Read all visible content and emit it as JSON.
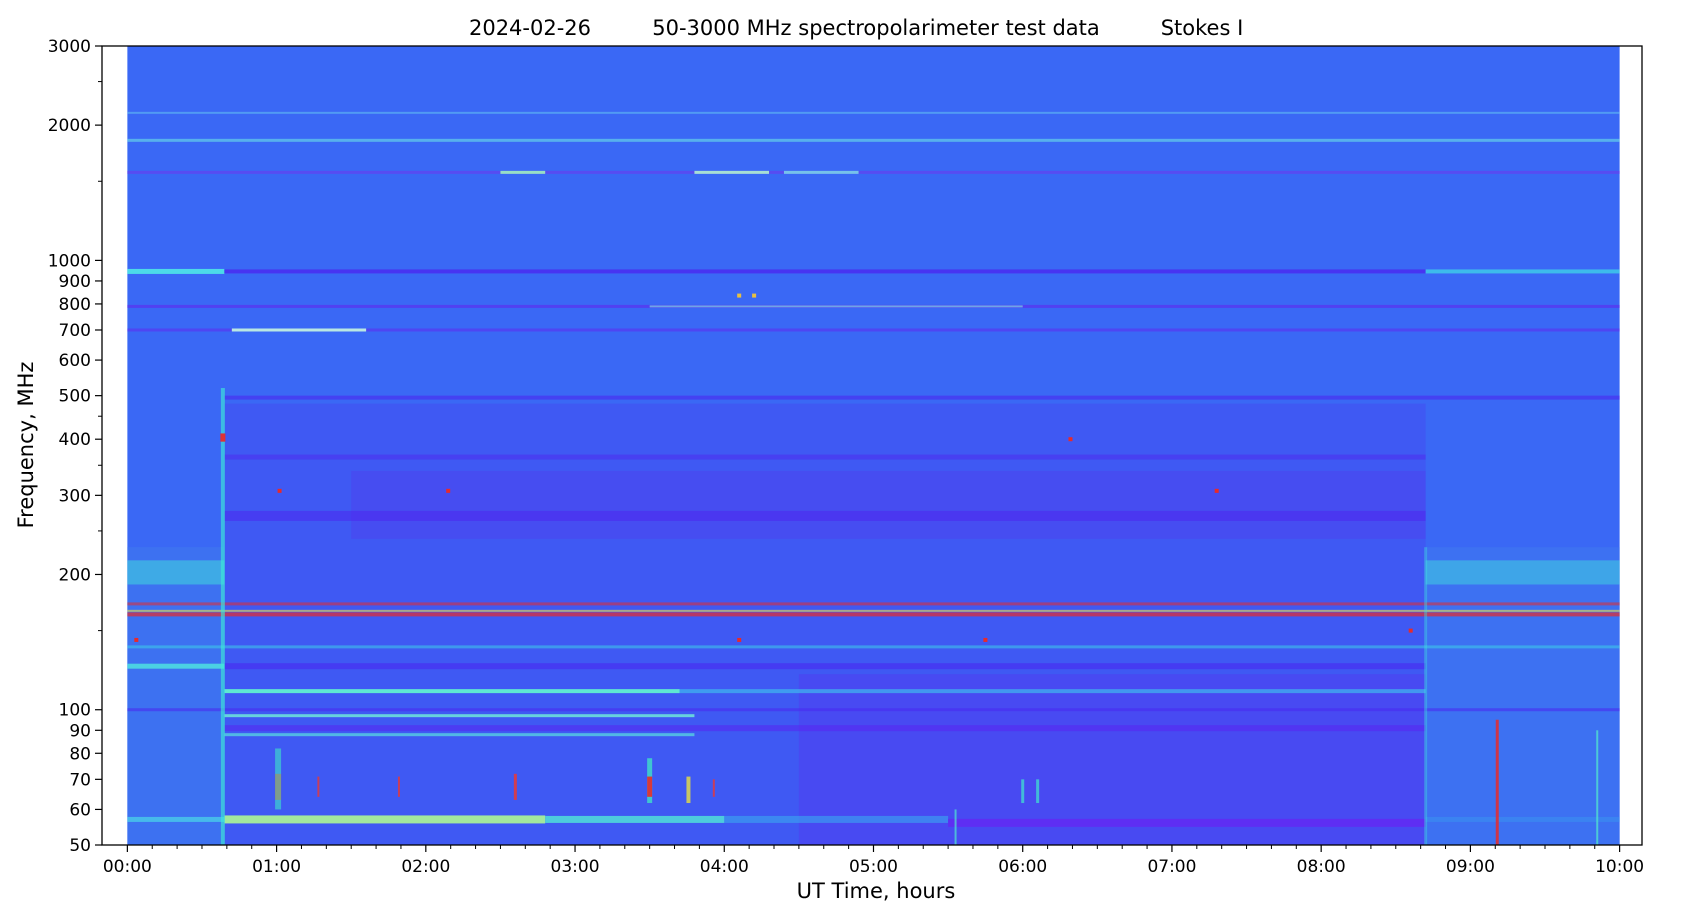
{
  "figure": {
    "title_date": "2024-02-26",
    "title_main": "50-3000 MHz spectropolarimeter test data",
    "title_stokes": "Stokes I"
  },
  "chart_data": {
    "type": "heatmap",
    "title": "2024-02-26          50-3000 MHz spectropolarimeter test data          Stokes I",
    "xlabel": "UT Time, hours",
    "ylabel": "Frequency, MHz",
    "x_range_hours": [
      -0.17,
      10.15
    ],
    "data_x_range_hours": [
      0,
      10
    ],
    "ylim_mhz": [
      50,
      3000
    ],
    "y_scale": "log",
    "colormap": "rainbow (blue low → cyan → green → yellow → red high)",
    "background_color": "#3a68f5",
    "xticks": [
      {
        "value": 0,
        "label": "00:00"
      },
      {
        "value": 1,
        "label": "01:00"
      },
      {
        "value": 2,
        "label": "02:00"
      },
      {
        "value": 3,
        "label": "03:00"
      },
      {
        "value": 4,
        "label": "04:00"
      },
      {
        "value": 5,
        "label": "05:00"
      },
      {
        "value": 6,
        "label": "06:00"
      },
      {
        "value": 7,
        "label": "07:00"
      },
      {
        "value": 8,
        "label": "08:00"
      },
      {
        "value": 9,
        "label": "09:00"
      },
      {
        "value": 10,
        "label": "10:00"
      }
    ],
    "yticks": [
      {
        "value": 50,
        "label": "50"
      },
      {
        "value": 60,
        "label": "60"
      },
      {
        "value": 70,
        "label": "70"
      },
      {
        "value": 80,
        "label": "80"
      },
      {
        "value": 90,
        "label": "90"
      },
      {
        "value": 100,
        "label": "100"
      },
      {
        "value": 200,
        "label": "200"
      },
      {
        "value": 300,
        "label": "300"
      },
      {
        "value": 400,
        "label": "400"
      },
      {
        "value": 500,
        "label": "500"
      },
      {
        "value": 600,
        "label": "600"
      },
      {
        "value": 700,
        "label": "700"
      },
      {
        "value": 800,
        "label": "800"
      },
      {
        "value": 900,
        "label": "900"
      },
      {
        "value": 1000,
        "label": "1000"
      },
      {
        "value": 2000,
        "label": "2000"
      },
      {
        "value": 3000,
        "label": "3000"
      }
    ],
    "regions": [
      {
        "t0": 0.0,
        "t1": 0.65,
        "f0": 50,
        "f1": 230,
        "color": "#3f78ee",
        "opacity": 0.6
      },
      {
        "t0": 0.65,
        "t1": 8.7,
        "f0": 50,
        "f1": 480,
        "color": "#4a3ff0",
        "opacity": 0.35
      },
      {
        "t0": 1.5,
        "t1": 8.7,
        "f0": 240,
        "f1": 340,
        "color": "#5533f0",
        "opacity": 0.3
      },
      {
        "t0": 4.5,
        "t1": 8.7,
        "f0": 50,
        "f1": 120,
        "color": "#5a2df2",
        "opacity": 0.35
      },
      {
        "t0": 8.7,
        "t1": 10.0,
        "f0": 50,
        "f1": 230,
        "color": "#3f78ee",
        "opacity": 0.55
      },
      {
        "t0": 0.0,
        "t1": 0.65,
        "f0": 190,
        "f1": 215,
        "color": "#3fd0e0",
        "opacity": 0.6
      },
      {
        "t0": 8.7,
        "t1": 10.0,
        "f0": 190,
        "f1": 215,
        "color": "#3fd0e0",
        "opacity": 0.55
      }
    ],
    "bands": [
      {
        "t0": 0.0,
        "t1": 10.0,
        "f": 2130,
        "w": 2,
        "color": "#58a8f2",
        "opacity": 0.8
      },
      {
        "t0": 0.0,
        "t1": 10.0,
        "f": 1850,
        "w": 3,
        "color": "#62c8ea",
        "opacity": 0.75
      },
      {
        "t0": 0.0,
        "t1": 10.0,
        "f": 1570,
        "w": 3,
        "color": "#5f45f0",
        "opacity": 0.8
      },
      {
        "t0": 2.5,
        "t1": 2.8,
        "f": 1570,
        "w": 3,
        "color": "#9ef0c0",
        "opacity": 0.9
      },
      {
        "t0": 3.8,
        "t1": 4.3,
        "f": 1570,
        "w": 3,
        "color": "#b0f0d0",
        "opacity": 0.9
      },
      {
        "t0": 4.4,
        "t1": 4.9,
        "f": 1570,
        "w": 3,
        "color": "#7ee0e8",
        "opacity": 0.8
      },
      {
        "t0": 0.0,
        "t1": 0.65,
        "f": 945,
        "w": 5,
        "color": "#4de0e8",
        "opacity": 0.95
      },
      {
        "t0": 0.65,
        "t1": 8.7,
        "f": 945,
        "w": 4,
        "color": "#4a2cf0",
        "opacity": 0.85
      },
      {
        "t0": 8.7,
        "t1": 10.0,
        "f": 945,
        "w": 4,
        "color": "#3fd0e8",
        "opacity": 0.8
      },
      {
        "t0": 0.0,
        "t1": 10.0,
        "f": 790,
        "w": 3,
        "color": "#5b30f0",
        "opacity": 0.7
      },
      {
        "t0": 3.5,
        "t1": 6.0,
        "f": 790,
        "w": 2,
        "color": "#80e8e0",
        "opacity": 0.6
      },
      {
        "t0": 0.0,
        "t1": 10.0,
        "f": 700,
        "w": 3,
        "color": "#5b30f0",
        "opacity": 0.6
      },
      {
        "t0": 0.7,
        "t1": 1.6,
        "f": 700,
        "w": 3,
        "color": "#c0f0e0",
        "opacity": 0.95
      },
      {
        "t0": 0.65,
        "t1": 10.0,
        "f": 495,
        "w": 4,
        "color": "#4a2cf0",
        "opacity": 0.65
      },
      {
        "t0": 0.65,
        "t1": 8.7,
        "f": 365,
        "w": 5,
        "color": "#5028f0",
        "opacity": 0.5
      },
      {
        "t0": 0.65,
        "t1": 8.7,
        "f": 270,
        "w": 10,
        "color": "#4d22f0",
        "opacity": 0.5
      },
      {
        "t0": 0.0,
        "t1": 10.0,
        "f": 172,
        "w": 3,
        "color": "#e82a2a",
        "opacity": 0.55
      },
      {
        "t0": 0.0,
        "t1": 10.0,
        "f": 163,
        "w": 4,
        "color": "#e82a2a",
        "opacity": 0.7
      },
      {
        "t0": 0.0,
        "t1": 10.0,
        "f": 166,
        "w": 2,
        "color": "#f0e040",
        "opacity": 0.6
      },
      {
        "t0": 0.0,
        "t1": 10.0,
        "f": 138,
        "w": 3,
        "color": "#3ed8e8",
        "opacity": 0.5
      },
      {
        "t0": 0.0,
        "t1": 0.65,
        "f": 125,
        "w": 5,
        "color": "#4de0e0",
        "opacity": 0.85
      },
      {
        "t0": 0.65,
        "t1": 8.7,
        "f": 125,
        "w": 6,
        "color": "#4a22f0",
        "opacity": 0.55
      },
      {
        "t0": 0.65,
        "t1": 3.7,
        "f": 110,
        "w": 4,
        "color": "#60f0d0",
        "opacity": 0.95
      },
      {
        "t0": 3.7,
        "t1": 8.7,
        "f": 110,
        "w": 4,
        "color": "#40b8ee",
        "opacity": 0.7
      },
      {
        "t0": 0.0,
        "t1": 10.0,
        "f": 100,
        "w": 3,
        "color": "#4a2cf0",
        "opacity": 0.6
      },
      {
        "t0": 0.65,
        "t1": 3.8,
        "f": 97,
        "w": 3,
        "color": "#6ee8d8",
        "opacity": 0.85
      },
      {
        "t0": 0.65,
        "t1": 8.7,
        "f": 91,
        "w": 6,
        "color": "#5a20f2",
        "opacity": 0.5
      },
      {
        "t0": 0.65,
        "t1": 3.8,
        "f": 88,
        "w": 3,
        "color": "#58d8e0",
        "opacity": 0.75
      },
      {
        "t0": 0.65,
        "t1": 2.8,
        "f": 57,
        "w": 8,
        "color": "#a8f098",
        "opacity": 0.95
      },
      {
        "t0": 2.8,
        "t1": 4.0,
        "f": 57,
        "w": 7,
        "color": "#50e0d8",
        "opacity": 0.85
      },
      {
        "t0": 4.0,
        "t1": 5.5,
        "f": 57,
        "w": 7,
        "color": "#3aa8f0",
        "opacity": 0.6
      },
      {
        "t0": 5.5,
        "t1": 8.7,
        "f": 56,
        "w": 8,
        "color": "#6a1ef2",
        "opacity": 0.65
      },
      {
        "t0": 0.0,
        "t1": 0.65,
        "f": 57,
        "w": 5,
        "color": "#4ad8e8",
        "opacity": 0.7
      },
      {
        "t0": 8.7,
        "t1": 10.0,
        "f": 57,
        "w": 5,
        "color": "#3a90f0",
        "opacity": 0.6
      }
    ],
    "bursts": [
      {
        "t": 0.64,
        "f0": 50,
        "f1": 520,
        "w": 4,
        "color": "#3ee8d8",
        "opacity": 0.65
      },
      {
        "t": 0.64,
        "f0": 395,
        "f1": 412,
        "w": 5,
        "color": "#e82a2a",
        "opacity": 0.95
      },
      {
        "t": 1.01,
        "f0": 63,
        "f1": 72,
        "w": 6,
        "color": "#e82a2a",
        "opacity": 0.95
      },
      {
        "t": 1.01,
        "f0": 60,
        "f1": 82,
        "w": 6,
        "color": "#3ee8c8",
        "opacity": 0.6
      },
      {
        "t": 1.28,
        "f0": 64,
        "f1": 71,
        "w": 2,
        "color": "#e03a40",
        "opacity": 0.85
      },
      {
        "t": 1.82,
        "f0": 64,
        "f1": 71,
        "w": 2,
        "color": "#e03a40",
        "opacity": 0.85
      },
      {
        "t": 2.6,
        "f0": 63,
        "f1": 72,
        "w": 3,
        "color": "#e03a40",
        "opacity": 0.9
      },
      {
        "t": 3.5,
        "f0": 62,
        "f1": 78,
        "w": 5,
        "color": "#40e0c8",
        "opacity": 0.8
      },
      {
        "t": 3.5,
        "f0": 64,
        "f1": 71,
        "w": 5,
        "color": "#e82a2a",
        "opacity": 0.9
      },
      {
        "t": 3.76,
        "f0": 62,
        "f1": 71,
        "w": 4,
        "color": "#e8e040",
        "opacity": 0.8
      },
      {
        "t": 3.93,
        "f0": 64,
        "f1": 70,
        "w": 2,
        "color": "#e03a40",
        "opacity": 0.85
      },
      {
        "t": 5.55,
        "f0": 50,
        "f1": 60,
        "w": 2,
        "color": "#50e8d0",
        "opacity": 0.7
      },
      {
        "t": 6.0,
        "f0": 62,
        "f1": 70,
        "w": 3,
        "color": "#40e0d0",
        "opacity": 0.75
      },
      {
        "t": 6.1,
        "f0": 62,
        "f1": 70,
        "w": 3,
        "color": "#40e0d0",
        "opacity": 0.75
      },
      {
        "t": 8.7,
        "f0": 50,
        "f1": 230,
        "w": 3,
        "color": "#3ee0e0",
        "opacity": 0.4
      },
      {
        "t": 9.18,
        "f0": 50,
        "f1": 95,
        "w": 3,
        "color": "#e82a2a",
        "opacity": 0.85
      },
      {
        "t": 9.85,
        "f0": 50,
        "f1": 90,
        "w": 2,
        "color": "#50e0d0",
        "opacity": 0.8
      }
    ],
    "spots": [
      {
        "t": 1.02,
        "f": 307,
        "color": "#e82a2a"
      },
      {
        "t": 2.15,
        "f": 307,
        "color": "#e82a2a"
      },
      {
        "t": 7.3,
        "f": 307,
        "color": "#e82a2a"
      },
      {
        "t": 6.32,
        "f": 400,
        "color": "#e82a2a"
      },
      {
        "t": 4.1,
        "f": 143,
        "color": "#e82a2a"
      },
      {
        "t": 5.75,
        "f": 143,
        "color": "#e82a2a"
      },
      {
        "t": 4.1,
        "f": 835,
        "color": "#e8c040"
      },
      {
        "t": 4.2,
        "f": 835,
        "color": "#e8c040"
      },
      {
        "t": 0.06,
        "f": 143,
        "color": "#e82a2a"
      },
      {
        "t": 8.6,
        "f": 150,
        "color": "#e82a2a"
      }
    ]
  }
}
